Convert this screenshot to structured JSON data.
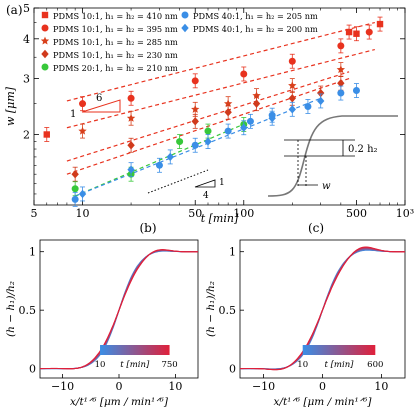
{
  "panels": {
    "a": "(a)",
    "b": "(b)",
    "c": "(c)"
  },
  "chart_data": [
    {
      "id": "a",
      "type": "scatter",
      "xscale": "log",
      "yscale": "log",
      "xlabel": "t [min]",
      "ylabel": "w [μm]",
      "xlim": [
        5,
        1000
      ],
      "ylim": [
        1.2,
        5
      ],
      "xticks": [
        "5",
        "10",
        "50",
        "100",
        "500",
        "10³"
      ],
      "yticks": [
        "2",
        "3",
        "4",
        "5"
      ],
      "legend_placement": "top-left",
      "series": [
        {
          "name": "PDMS 10:1, h₁ = h₂ = 410 nm",
          "marker": "square",
          "color": "#e8321e",
          "points": [
            [
              6,
              2.0
            ],
            [
              450,
              4.2
            ],
            [
              500,
              4.15
            ],
            [
              700,
              4.45
            ]
          ]
        },
        {
          "name": "PDMS 10:1, h₁ = h₂ = 395 nm",
          "marker": "circle",
          "color": "#e8321e",
          "points": [
            [
              10,
              2.5
            ],
            [
              20,
              2.6
            ],
            [
              50,
              2.95
            ],
            [
              100,
              3.1
            ],
            [
              200,
              3.4
            ],
            [
              400,
              3.8
            ],
            [
              600,
              4.2
            ]
          ]
        },
        {
          "name": "PDMS 10:1, h₁ = h₂ = 285 nm",
          "marker": "star",
          "color": "#d8401c",
          "points": [
            [
              10,
              2.05
            ],
            [
              20,
              2.25
            ],
            [
              50,
              2.4
            ],
            [
              80,
              2.5
            ],
            [
              120,
              2.65
            ],
            [
              200,
              2.85
            ],
            [
              400,
              3.2
            ]
          ]
        },
        {
          "name": "PDMS 10:1, h₁ = h₂ = 230 nm",
          "marker": "diamond",
          "color": "#d03a1c",
          "points": [
            [
              9,
              1.5
            ],
            [
              20,
              1.85
            ],
            [
              50,
              2.2
            ],
            [
              80,
              2.35
            ],
            [
              120,
              2.5
            ],
            [
              200,
              2.6
            ],
            [
              300,
              2.7
            ],
            [
              400,
              2.9
            ]
          ]
        },
        {
          "name": "PDMS 20:1, h₁ = h₂ = 210 nm",
          "marker": "circle",
          "color": "#37c83a",
          "points": [
            [
              9,
              1.35
            ],
            [
              20,
              1.5
            ],
            [
              40,
              1.9
            ],
            [
              60,
              2.05
            ],
            [
              100,
              2.15
            ]
          ]
        },
        {
          "name": "PDMS 40:1, h₁ = h₂ = 205 nm",
          "marker": "circle",
          "color": "#3a8ee6",
          "points": [
            [
              9,
              1.25
            ],
            [
              30,
              1.6
            ],
            [
              50,
              1.85
            ],
            [
              80,
              2.05
            ],
            [
              110,
              2.2
            ],
            [
              150,
              2.3
            ],
            [
              250,
              2.45
            ],
            [
              400,
              2.7
            ],
            [
              500,
              2.75
            ]
          ]
        },
        {
          "name": "PDMS 40:1, h₁ = h₂ = 200 nm",
          "marker": "diamond",
          "color": "#3a8ee6",
          "points": [
            [
              10,
              1.3
            ],
            [
              20,
              1.55
            ],
            [
              35,
              1.7
            ],
            [
              60,
              1.9
            ],
            [
              100,
              2.1
            ],
            [
              150,
              2.25
            ],
            [
              200,
              2.4
            ],
            [
              300,
              2.55
            ]
          ]
        }
      ],
      "fit_lines": [
        {
          "color": "#e8321e",
          "x": [
            8,
            650
          ],
          "y": [
            2.55,
            4.5
          ]
        },
        {
          "color": "#e8321e",
          "x": [
            8,
            650
          ],
          "y": [
            2.1,
            3.7
          ]
        },
        {
          "color": "#e8321e",
          "x": [
            8,
            450
          ],
          "y": [
            1.65,
            3.15
          ]
        },
        {
          "color": "#e8321e",
          "x": [
            8,
            450
          ],
          "y": [
            1.5,
            3.0
          ]
        },
        {
          "color": "#37c83a",
          "x": [
            9,
            110
          ],
          "y": [
            1.28,
            2.2
          ]
        },
        {
          "color": "#3a8ee6",
          "x": [
            9,
            300
          ],
          "y": [
            1.28,
            2.6
          ]
        }
      ],
      "slope_annotations": [
        {
          "run": "6",
          "rise": "1"
        },
        {
          "run": "4",
          "rise": "1"
        }
      ],
      "inset": {
        "h_label": "0.2 h₂",
        "w_label": "w"
      }
    },
    {
      "id": "b",
      "type": "line",
      "xlabel": "x/t¹ᐟ⁶ [μm / min¹ᐟ⁶]",
      "ylabel": "(h − h₁)/h₂",
      "xlim": [
        -14,
        14
      ],
      "ylim": [
        -0.08,
        1.1
      ],
      "xticks": [
        "−10",
        "0",
        "10"
      ],
      "yticks": [
        "0",
        "0.5",
        "1"
      ],
      "colorbar": {
        "label": "t [min]",
        "min": "10",
        "max": "750",
        "colors": [
          "#3a8ee6",
          "#e0203a"
        ]
      },
      "series_note": "family of normalized profiles, t from 10 to 750 min"
    },
    {
      "id": "c",
      "type": "line",
      "xlabel": "x/t¹ᐟ⁶ [μm / min¹ᐟ⁶]",
      "ylabel": "(h − h₁)/h₂",
      "xlim": [
        -14,
        14
      ],
      "ylim": [
        -0.08,
        1.1
      ],
      "xticks": [
        "−10",
        "0",
        "10"
      ],
      "yticks": [
        "0",
        "0.5",
        "1"
      ],
      "colorbar": {
        "label": "t [min]",
        "min": "10",
        "max": "600",
        "colors": [
          "#3a8ee6",
          "#e0203a"
        ]
      },
      "series_note": "family of normalized profiles, t from 10 to 600 min"
    }
  ]
}
